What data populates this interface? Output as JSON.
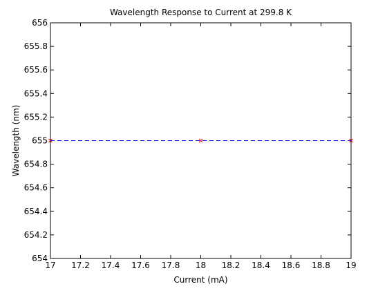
{
  "chart_data": {
    "type": "line",
    "title": "Wavelength Response to Current at 299.8 K",
    "xlabel": "Current (mA)",
    "ylabel": "Wavelength (nm)",
    "xlim": [
      17,
      19
    ],
    "ylim": [
      654,
      656
    ],
    "x_ticks": [
      "17",
      "17.2",
      "17.4",
      "17.6",
      "17.8",
      "18",
      "18.2",
      "18.4",
      "18.6",
      "18.8",
      "19"
    ],
    "y_ticks": [
      "654",
      "654.2",
      "654.4",
      "654.6",
      "654.8",
      "655",
      "655.2",
      "655.4",
      "655.6",
      "655.8",
      "656"
    ],
    "grid": false,
    "legend": "none",
    "series": [
      {
        "x": [
          17,
          18,
          19
        ],
        "y": [
          655,
          655,
          655
        ],
        "line_style": "dashed",
        "line_color": "#0000ff",
        "marker": "x",
        "marker_color": "#ff0000"
      }
    ]
  }
}
